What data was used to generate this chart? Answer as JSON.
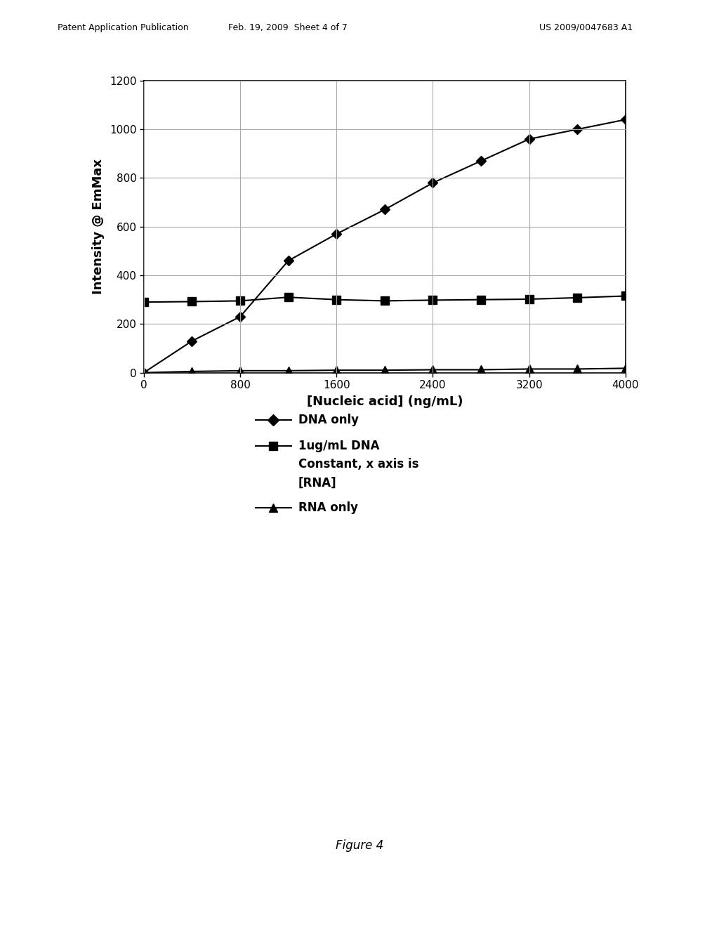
{
  "x_values": [
    0,
    400,
    800,
    1200,
    1600,
    2000,
    2400,
    2800,
    3200,
    3600,
    4000
  ],
  "dna_only": [
    0,
    130,
    230,
    460,
    570,
    670,
    780,
    870,
    960,
    1000,
    1040
  ],
  "dna_constant": [
    290,
    292,
    295,
    310,
    300,
    295,
    298,
    300,
    302,
    308,
    315
  ],
  "rna_only": [
    0,
    5,
    8,
    8,
    10,
    10,
    12,
    12,
    15,
    15,
    18
  ],
  "xlabel": "[Nucleic acid] (ng/mL)",
  "ylabel": "Intensity @ EmMax",
  "xlim": [
    0,
    4000
  ],
  "ylim": [
    0,
    1200
  ],
  "xticks": [
    0,
    800,
    1600,
    2400,
    3200,
    4000
  ],
  "yticks": [
    0,
    200,
    400,
    600,
    800,
    1000,
    1200
  ],
  "legend_line1": "DNA only",
  "legend_line2a": "1ug/mL DNA",
  "legend_line2b": "Constant, x axis is",
  "legend_line2c": "[RNA]",
  "legend_line3": "RNA only",
  "figure_caption": "Figure 4",
  "header_left": "Patent Application Publication",
  "header_center": "Feb. 19, 2009  Sheet 4 of 7",
  "header_right": "US 2009/0047683 A1",
  "background_color": "#ffffff",
  "line_color": "#000000",
  "grid_color": "#aaaaaa"
}
